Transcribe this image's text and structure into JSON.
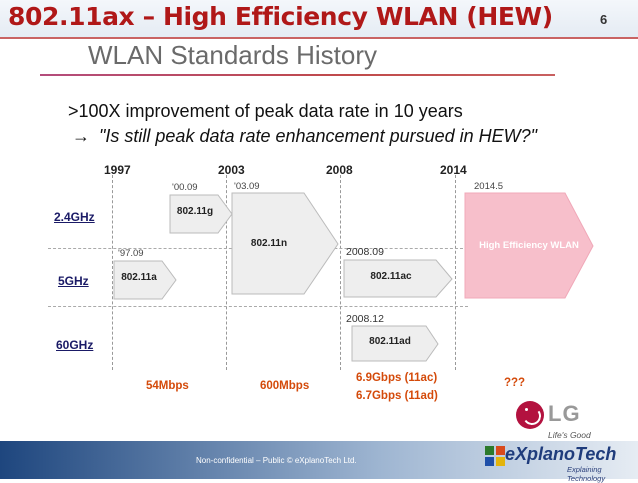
{
  "slide": {
    "title": "802.11ax – High Efficiency WLAN (HEW)",
    "number": "6",
    "subtitle": "WLAN Standards History"
  },
  "headline": {
    "line1": ">100X improvement of peak data rate in 10 years",
    "arrow": "→",
    "line2": "\"Is still peak data rate enhancement pursued in HEW?\""
  },
  "timeline": {
    "years": [
      "1997",
      "2003",
      "2008",
      "2014"
    ],
    "bands": [
      "2.4GHz",
      "5GHz",
      "60GHz"
    ],
    "standards": {
      "s11g": {
        "date": "'00.09",
        "label": "802.11g"
      },
      "s11a": {
        "date": "'97.09",
        "label": "802.11a"
      },
      "s11n": {
        "date": "'03.09",
        "label": "802.11n"
      },
      "s11ac": {
        "date": "2008.09",
        "label": "802.11ac"
      },
      "s11ad": {
        "date": "2008.12",
        "label": "802.11ad"
      },
      "hew": {
        "date": "2014.5",
        "label": "High Efficiency WLAN"
      }
    },
    "rates": {
      "r1": "54Mbps",
      "r2": "600Mbps",
      "r3a": "6.9Gbps (11ac)",
      "r3b": "6.7Gbps (11ad)",
      "r4": "???"
    },
    "colors": {
      "arrow_fill": "#eeeeee",
      "hew_fill": "#f7bfcb",
      "rate_text": "#d44a0a"
    }
  },
  "logo": {
    "lg_text": "LG",
    "lg_tagline": "Life's Good"
  },
  "footer": {
    "confidentiality": "Non-confidential – Public © eXplanoTech Ltd.",
    "brand_name": "eXplanoTech",
    "brand_tagline": "Explaining Technology"
  }
}
